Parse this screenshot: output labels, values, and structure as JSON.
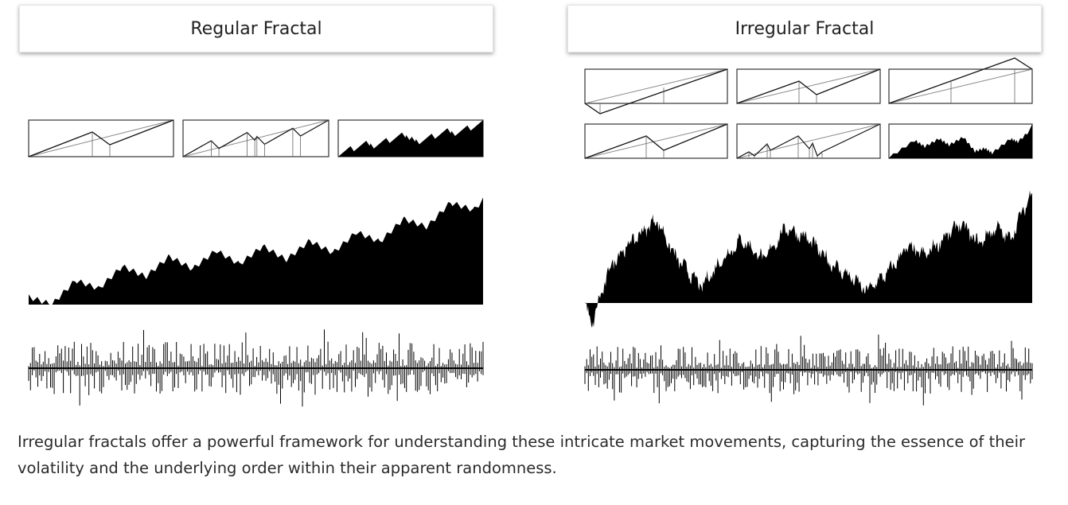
{
  "left_panel": {
    "title": "Regular Fractal"
  },
  "right_panel": {
    "title": "Irregular Fractal"
  },
  "caption": "Irregular fractals offer a powerful framework for understanding these intricate market movements, capturing the essence of their volatility and the underlying order within their apparent randomness.",
  "colors": {
    "ink": "#000000",
    "box_border": "#333333",
    "trend_line": "#888888"
  }
}
